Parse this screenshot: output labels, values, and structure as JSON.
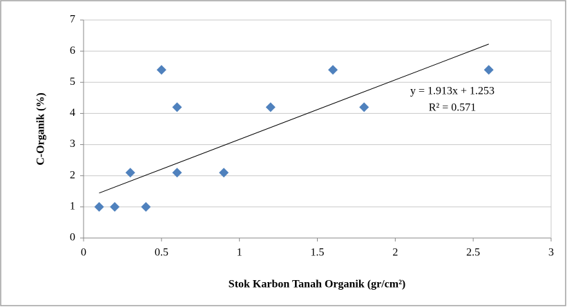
{
  "chart_data": {
    "type": "scatter",
    "x_label": "Stok Karbon Tanah Organik (gr/cm²)",
    "y_label": "C-Organik (%)",
    "x": [
      0.1,
      0.2,
      0.4,
      0.3,
      0.6,
      0.9,
      0.5,
      0.6,
      1.2,
      1.6,
      1.8,
      2.6
    ],
    "values": [
      1.0,
      1.0,
      1.0,
      2.1,
      2.1,
      2.1,
      5.4,
      4.2,
      4.2,
      5.4,
      4.2,
      5.4
    ],
    "color": "#4f81bd",
    "xlim": [
      0,
      3
    ],
    "xticks": [
      0,
      0.5,
      1,
      1.5,
      2,
      2.5,
      3
    ],
    "ylim": [
      0,
      7
    ],
    "yticks": [
      0,
      1,
      2,
      3,
      4,
      5,
      6,
      7
    ],
    "grid": true,
    "trendline": {
      "slope": 1.913,
      "intercept": 1.253,
      "label": "y = 1.913x + 1.253",
      "r2_label": "R² = 0.571"
    }
  }
}
